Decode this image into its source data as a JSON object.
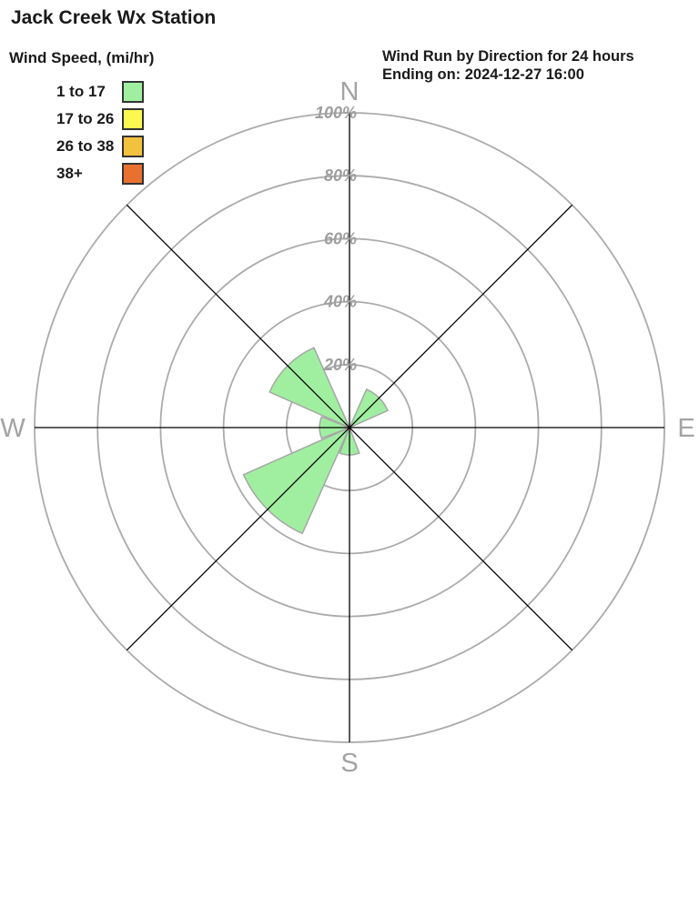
{
  "header": {
    "title": "Jack Creek Wx Station",
    "subtitle_line1": "Wind Run by Direction for 24 hours",
    "subtitle_line2": "Ending on: 2024-12-27 16:00"
  },
  "legend": {
    "title": "Wind Speed, (mi/hr)",
    "items": [
      {
        "label": "1 to 17",
        "color": "#A0EFA0"
      },
      {
        "label": "17 to 26",
        "color": "#FBF850"
      },
      {
        "label": "26 to 38",
        "color": "#F2C13D"
      },
      {
        "label": "38+",
        "color": "#E8712F"
      }
    ]
  },
  "chart_data": {
    "type": "windrose",
    "title": "Wind Run by Direction for 24 hours",
    "subtitle": "Ending on: 2024-12-27 16:00",
    "directions": [
      "N",
      "NE",
      "E",
      "SE",
      "S",
      "SW",
      "W",
      "NW"
    ],
    "series": [
      {
        "name": "1 to 17",
        "color": "#A0EFA0",
        "values": [
          0,
          13.3,
          0,
          0,
          8.7,
          36.8,
          9.5,
          27.8
        ]
      },
      {
        "name": "17 to 26",
        "color": "#FBF850",
        "values": [
          0,
          0,
          0,
          0,
          0,
          0,
          0,
          0
        ]
      },
      {
        "name": "26 to 38",
        "color": "#F2C13D",
        "values": [
          0,
          0,
          0,
          0,
          0,
          0,
          0,
          0
        ]
      },
      {
        "name": "38+",
        "color": "#E8712F",
        "values": [
          0,
          0,
          0,
          0,
          0,
          0,
          0,
          0
        ]
      }
    ],
    "values_unit": "%",
    "radial_ticks": [
      "20%",
      "40%",
      "60%",
      "80%",
      "100%"
    ],
    "radial_range": [
      0,
      100
    ],
    "compass_labels": {
      "n": "N",
      "e": "E",
      "s": "S",
      "w": "W"
    },
    "grid_on": true,
    "grid_color": "#ABABAB",
    "spoke_color": "#000000",
    "tick_label_color": "#9E9E9E",
    "compass_label_color": "#A3A3A3",
    "petal_outline_color": "#A6A6A6"
  }
}
